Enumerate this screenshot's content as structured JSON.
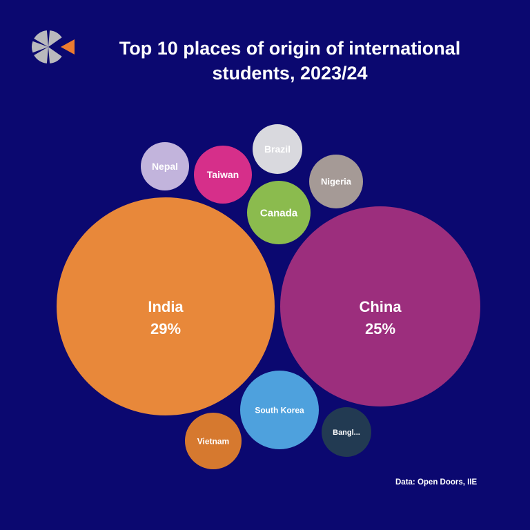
{
  "title_lines": [
    "Top 10 places of origin of international",
    "students, 2023/24"
  ],
  "source": "Data: Open Doors, IIE",
  "colors": {
    "background": "#0b0870",
    "logo_grey": "#b9b9bd",
    "logo_orange": "#ee7b2f"
  },
  "chart_data": {
    "type": "bubble",
    "series": [
      {
        "name": "India",
        "display": "India",
        "percent": "29%",
        "color": "#e8883a"
      },
      {
        "name": "China",
        "display": "China",
        "percent": "25%",
        "color": "#9c2e7d"
      },
      {
        "name": "South Korea",
        "display": "South Korea",
        "percent": "",
        "color": "#4ea1dd"
      },
      {
        "name": "Canada",
        "display": "Canada",
        "percent": "",
        "color": "#8bbb4e"
      },
      {
        "name": "Taiwan",
        "display": "Taiwan",
        "percent": "",
        "color": "#d62f8a"
      },
      {
        "name": "Brazil",
        "display": "Brazil",
        "percent": "",
        "color": "#d9d9de"
      },
      {
        "name": "Nigeria",
        "display": "Nigeria",
        "percent": "",
        "color": "#a59a96"
      },
      {
        "name": "Nepal",
        "display": "Nepal",
        "percent": "",
        "color": "#c2b4dc"
      },
      {
        "name": "Vietnam",
        "display": "Vietnam",
        "percent": "",
        "color": "#d6792f"
      },
      {
        "name": "Bangladesh",
        "display": "Bangl...",
        "percent": "",
        "color": "#223a52"
      }
    ]
  }
}
